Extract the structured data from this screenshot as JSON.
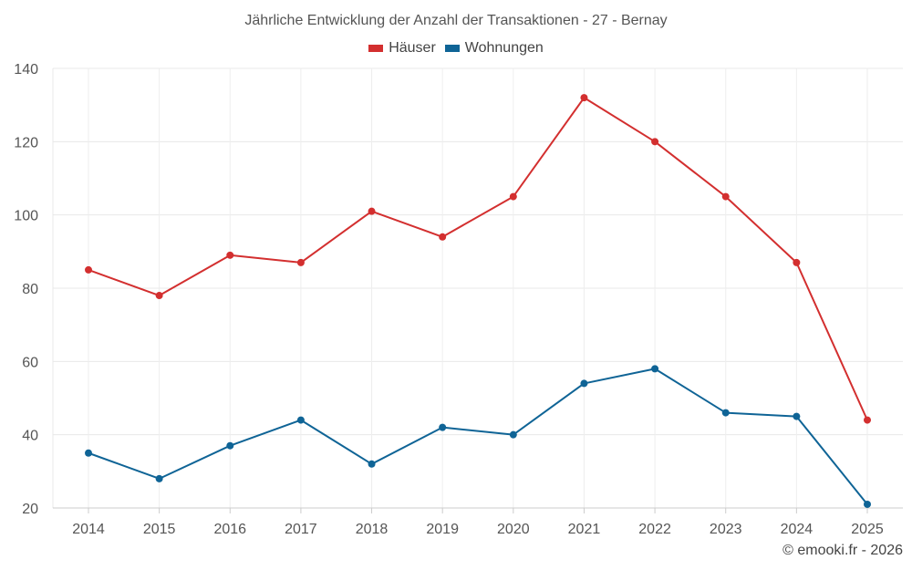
{
  "chart_data": {
    "type": "line",
    "title": "Jährliche Entwicklung der Anzahl der Transaktionen - 27 - Bernay",
    "categories": [
      "2014",
      "2015",
      "2016",
      "2017",
      "2018",
      "2019",
      "2020",
      "2021",
      "2022",
      "2023",
      "2024",
      "2025"
    ],
    "ylim": [
      20,
      140
    ],
    "yticks": [
      20,
      40,
      60,
      80,
      100,
      120,
      140
    ],
    "grid": true,
    "legend_position": "top-center",
    "series": [
      {
        "name": "Häuser",
        "color": "#d32f2f",
        "values": [
          85,
          78,
          89,
          87,
          101,
          94,
          105,
          132,
          120,
          105,
          87,
          44
        ]
      },
      {
        "name": "Wohnungen",
        "color": "#0f6496",
        "values": [
          35,
          28,
          37,
          44,
          32,
          42,
          40,
          54,
          58,
          46,
          45,
          21
        ]
      }
    ]
  },
  "credit": "© emooki.fr - 2026"
}
